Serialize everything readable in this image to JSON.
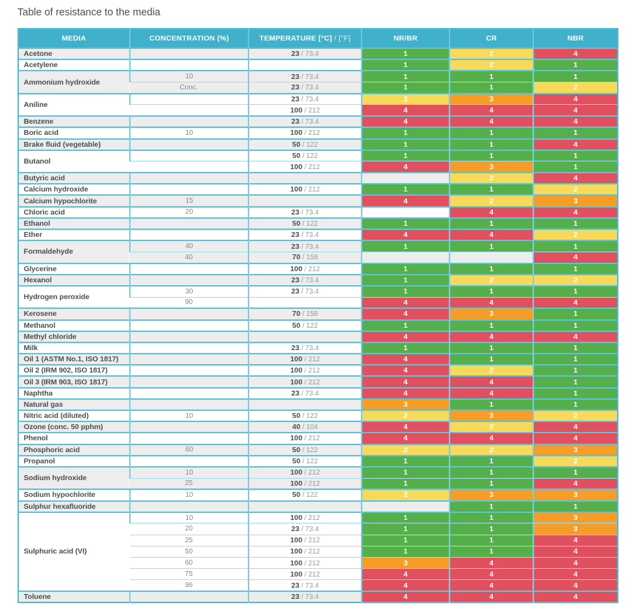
{
  "title": "Table of resistance to the media",
  "colors": {
    "header_bg": "#41b0cb",
    "grid_strong": "#5ec3d7",
    "grid_light": "#7ccde0",
    "row_shade": "#ededee",
    "title_text": "#4d4d4f",
    "media_text": "#4d4e50",
    "muted_text": "#87888b"
  },
  "rating_colors": {
    "1": "#55b04b",
    "2": "#f8da5b",
    "3": "#f59d27",
    "4": "#e0505f"
  },
  "header": {
    "media": "MEDIA",
    "concentration": "CONCENTRATION (%)",
    "temperature_bold": "TEMPERATURE [°C]",
    "temperature_light": " / [°F]",
    "nr_br": "NR/BR",
    "cr": "CR",
    "nbr": "NBR"
  },
  "table": {
    "groups": [
      {
        "media": "Acetone",
        "shade": "gray",
        "rows": [
          {
            "concentration": "",
            "temp_c": "23",
            "temp_f": "73.4",
            "ratings": [
              "1",
              "2",
              "4"
            ]
          }
        ]
      },
      {
        "media": "Acetylene",
        "shade": "white",
        "rows": [
          {
            "concentration": "",
            "temp_c": "",
            "temp_f": "",
            "ratings": [
              "1",
              "2",
              "1"
            ]
          }
        ]
      },
      {
        "media": "Ammonium hydroxide",
        "shade": "gray",
        "rows": [
          {
            "concentration": "10",
            "temp_c": "23",
            "temp_f": "73.4",
            "ratings": [
              "1",
              "1",
              "1"
            ]
          },
          {
            "concentration": "Conc.",
            "temp_c": "23",
            "temp_f": "73.4",
            "ratings": [
              "1",
              "1",
              "2"
            ]
          }
        ]
      },
      {
        "media": "Aniline",
        "shade": "white",
        "rows": [
          {
            "concentration": "",
            "temp_c": "23",
            "temp_f": "73.4",
            "ratings": [
              "2",
              "3",
              "4"
            ]
          },
          {
            "concentration": "",
            "temp_c": "100",
            "temp_f": "212",
            "ratings": [
              "4",
              "4",
              "4"
            ]
          }
        ]
      },
      {
        "media": "Benzene",
        "shade": "gray",
        "rows": [
          {
            "concentration": "",
            "temp_c": "23",
            "temp_f": "73.4",
            "ratings": [
              "4",
              "4",
              "4"
            ]
          }
        ]
      },
      {
        "media": "Boric acid",
        "shade": "white",
        "rows": [
          {
            "concentration": "10",
            "temp_c": "100",
            "temp_f": "212",
            "ratings": [
              "1",
              "1",
              "1"
            ]
          }
        ]
      },
      {
        "media": "Brake fluid (vegetable)",
        "shade": "gray",
        "rows": [
          {
            "concentration": "",
            "temp_c": "50",
            "temp_f": "122",
            "ratings": [
              "1",
              "1",
              "4"
            ]
          }
        ]
      },
      {
        "media": "Butanol",
        "shade": "white",
        "rows": [
          {
            "concentration": "",
            "temp_c": "50",
            "temp_f": "122",
            "ratings": [
              "1",
              "1",
              "1"
            ]
          },
          {
            "concentration": "",
            "temp_c": "100",
            "temp_f": "212",
            "ratings": [
              "4",
              "3",
              "1"
            ]
          }
        ]
      },
      {
        "media": "Butyric acid",
        "shade": "gray",
        "rows": [
          {
            "concentration": "",
            "temp_c": "",
            "temp_f": "",
            "ratings": [
              "",
              "2",
              "4"
            ]
          }
        ]
      },
      {
        "media": "Calcium hydroxide",
        "shade": "white",
        "rows": [
          {
            "concentration": "",
            "temp_c": "100",
            "temp_f": "212",
            "ratings": [
              "1",
              "1",
              "2"
            ]
          }
        ]
      },
      {
        "media": "Calcium hypochlorite",
        "shade": "gray",
        "rows": [
          {
            "concentration": "15",
            "temp_c": "",
            "temp_f": "",
            "ratings": [
              "4",
              "2",
              "3"
            ]
          }
        ]
      },
      {
        "media": "Chloric acid",
        "shade": "white",
        "rows": [
          {
            "concentration": "20",
            "temp_c": "23",
            "temp_f": "73.4",
            "ratings": [
              "",
              "4",
              "4"
            ]
          }
        ]
      },
      {
        "media": "Ethanol",
        "shade": "gray",
        "rows": [
          {
            "concentration": "",
            "temp_c": "50",
            "temp_f": "122",
            "ratings": [
              "1",
              "1",
              "1"
            ]
          }
        ]
      },
      {
        "media": "Ether",
        "shade": "white",
        "rows": [
          {
            "concentration": "",
            "temp_c": "23",
            "temp_f": "73.4",
            "ratings": [
              "4",
              "4",
              "2"
            ]
          }
        ]
      },
      {
        "media": "Formaldehyde",
        "shade": "gray",
        "rows": [
          {
            "concentration": "40",
            "temp_c": "23",
            "temp_f": "73.4",
            "ratings": [
              "1",
              "1",
              "1"
            ]
          },
          {
            "concentration": "40",
            "temp_c": "70",
            "temp_f": "158",
            "ratings": [
              "",
              "",
              "4"
            ]
          }
        ]
      },
      {
        "media": "Glycerine",
        "shade": "white",
        "rows": [
          {
            "concentration": "",
            "temp_c": "100",
            "temp_f": "212",
            "ratings": [
              "1",
              "1",
              "1"
            ]
          }
        ]
      },
      {
        "media": "Hexanol",
        "shade": "gray",
        "rows": [
          {
            "concentration": "",
            "temp_c": "23",
            "temp_f": "73.4",
            "ratings": [
              "1",
              "2",
              "2"
            ]
          }
        ]
      },
      {
        "media": "Hydrogen peroxide",
        "shade": "white",
        "rows": [
          {
            "concentration": "30",
            "temp_c": "23",
            "temp_f": "73.4",
            "ratings": [
              "1",
              "1",
              "1"
            ]
          },
          {
            "concentration": "90",
            "temp_c": "",
            "temp_f": "",
            "ratings": [
              "4",
              "4",
              "4"
            ]
          }
        ]
      },
      {
        "media": "Kerosene",
        "shade": "gray",
        "rows": [
          {
            "concentration": "",
            "temp_c": "70",
            "temp_f": "158",
            "ratings": [
              "4",
              "3",
              "1"
            ]
          }
        ]
      },
      {
        "media": "Methanol",
        "shade": "white",
        "rows": [
          {
            "concentration": "",
            "temp_c": "50",
            "temp_f": "122",
            "ratings": [
              "1",
              "1",
              "1"
            ]
          }
        ]
      },
      {
        "media": "Methyl chloride",
        "shade": "gray",
        "rows": [
          {
            "concentration": "",
            "temp_c": "",
            "temp_f": "",
            "ratings": [
              "4",
              "4",
              "4"
            ]
          }
        ]
      },
      {
        "media": "Milk",
        "shade": "white",
        "rows": [
          {
            "concentration": "",
            "temp_c": "23",
            "temp_f": "73.4",
            "ratings": [
              "1",
              "1",
              "1"
            ]
          }
        ]
      },
      {
        "media": "Oil 1 (ASTM No.1, ISO 1817)",
        "shade": "gray",
        "rows": [
          {
            "concentration": "",
            "temp_c": "100",
            "temp_f": "212",
            "ratings": [
              "4",
              "1",
              "1"
            ]
          }
        ]
      },
      {
        "media": "Oil 2 (IRM 902, ISO 1817)",
        "shade": "white",
        "rows": [
          {
            "concentration": "",
            "temp_c": "100",
            "temp_f": "212",
            "ratings": [
              "4",
              "2",
              "1"
            ]
          }
        ]
      },
      {
        "media": "Oil 3 (IRM 903, ISO 1817)",
        "shade": "gray",
        "rows": [
          {
            "concentration": "",
            "temp_c": "100",
            "temp_f": "212",
            "ratings": [
              "4",
              "4",
              "1"
            ]
          }
        ]
      },
      {
        "media": "Naphtha",
        "shade": "white",
        "rows": [
          {
            "concentration": "",
            "temp_c": "23",
            "temp_f": "73.4",
            "ratings": [
              "4",
              "4",
              "1"
            ]
          }
        ]
      },
      {
        "media": "Natural gas",
        "shade": "gray",
        "rows": [
          {
            "concentration": "",
            "temp_c": "",
            "temp_f": "",
            "ratings": [
              "3",
              "1",
              "1"
            ]
          }
        ]
      },
      {
        "media": "Nitric acid (diluted)",
        "shade": "white",
        "rows": [
          {
            "concentration": "10",
            "temp_c": "50",
            "temp_f": "122",
            "ratings": [
              "2",
              "3",
              "2"
            ]
          }
        ]
      },
      {
        "media": "Ozone (conc. 50 pphm)",
        "shade": "gray",
        "rows": [
          {
            "concentration": "",
            "temp_c": "40",
            "temp_f": "104",
            "ratings": [
              "4",
              "2",
              "4"
            ]
          }
        ]
      },
      {
        "media": "Phenol",
        "shade": "white",
        "rows": [
          {
            "concentration": "",
            "temp_c": "100",
            "temp_f": "212",
            "ratings": [
              "4",
              "4",
              "4"
            ]
          }
        ]
      },
      {
        "media": "Phosphoric acid",
        "shade": "gray",
        "rows": [
          {
            "concentration": "60",
            "temp_c": "50",
            "temp_f": "122",
            "ratings": [
              "2",
              "2",
              "3"
            ]
          }
        ]
      },
      {
        "media": "Propanol",
        "shade": "white",
        "rows": [
          {
            "concentration": "",
            "temp_c": "50",
            "temp_f": "122",
            "ratings": [
              "1",
              "1",
              "2"
            ]
          }
        ]
      },
      {
        "media": "Sodium hydroxide",
        "shade": "gray",
        "rows": [
          {
            "concentration": "10",
            "temp_c": "100",
            "temp_f": "212",
            "ratings": [
              "1",
              "1",
              "1"
            ]
          },
          {
            "concentration": "25",
            "temp_c": "100",
            "temp_f": "212",
            "ratings": [
              "1",
              "1",
              "4"
            ]
          }
        ]
      },
      {
        "media": "Sodium hypochlorite",
        "shade": "white",
        "rows": [
          {
            "concentration": "10",
            "temp_c": "50",
            "temp_f": "122",
            "ratings": [
              "2",
              "3",
              "3"
            ]
          }
        ]
      },
      {
        "media": "Sulphur hexafluoride",
        "shade": "gray",
        "rows": [
          {
            "concentration": "",
            "temp_c": "",
            "temp_f": "",
            "ratings": [
              "",
              "1",
              "1"
            ]
          }
        ]
      },
      {
        "media": "Sulphuric acid (VI)",
        "shade": "white",
        "rows": [
          {
            "concentration": "10",
            "temp_c": "100",
            "temp_f": "212",
            "ratings": [
              "1",
              "1",
              "3"
            ]
          },
          {
            "concentration": "20",
            "temp_c": "23",
            "temp_f": "73.4",
            "ratings": [
              "1",
              "1",
              "3"
            ]
          },
          {
            "concentration": "25",
            "temp_c": "100",
            "temp_f": "212",
            "ratings": [
              "1",
              "1",
              "4"
            ]
          },
          {
            "concentration": "50",
            "temp_c": "100",
            "temp_f": "212",
            "ratings": [
              "1",
              "1",
              "4"
            ]
          },
          {
            "concentration": "60",
            "temp_c": "100",
            "temp_f": "212",
            "ratings": [
              "3",
              "4",
              "4"
            ]
          },
          {
            "concentration": "75",
            "temp_c": "100",
            "temp_f": "212",
            "ratings": [
              "4",
              "4",
              "4"
            ]
          },
          {
            "concentration": "96",
            "temp_c": "23",
            "temp_f": "73.4",
            "ratings": [
              "4",
              "4",
              "4"
            ]
          }
        ]
      },
      {
        "media": "Toluene",
        "shade": "gray",
        "rows": [
          {
            "concentration": "",
            "temp_c": "23",
            "temp_f": "73.4",
            "ratings": [
              "4",
              "4",
              "4"
            ]
          }
        ]
      }
    ]
  }
}
